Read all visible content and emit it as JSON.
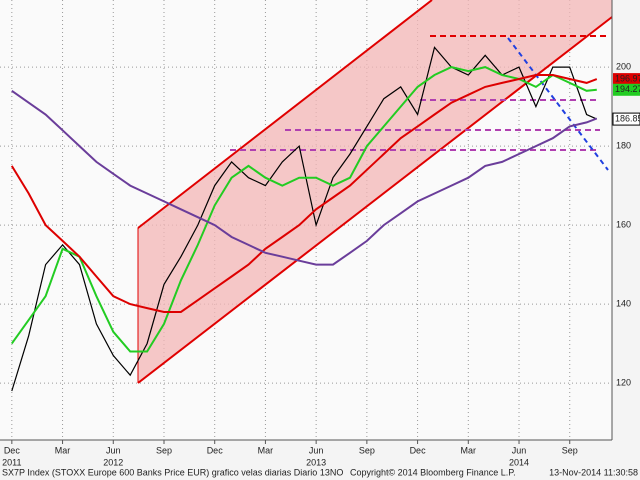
{
  "chart_data": {
    "type": "line",
    "x": [
      0,
      1,
      2,
      3,
      4,
      5,
      6,
      7,
      8,
      9,
      10,
      11,
      12,
      13,
      14,
      15,
      16,
      17,
      18,
      19,
      20,
      21,
      22,
      23,
      24,
      25,
      26,
      27,
      28,
      29,
      30,
      31,
      32,
      33,
      34,
      34.6
    ],
    "series": [
      {
        "color": "#000000",
        "values": [
          118,
          132,
          150,
          155,
          150,
          135,
          127,
          122,
          130,
          145,
          152,
          160,
          170,
          176,
          172,
          170,
          176,
          180,
          160,
          172,
          178,
          185,
          192,
          195,
          188,
          205,
          200,
          198,
          203,
          198,
          200,
          190,
          200,
          200,
          188,
          186.85
        ]
      },
      {
        "color": "#22cc22",
        "values": [
          130,
          136,
          142,
          154,
          152,
          142,
          133,
          128,
          128,
          135,
          146,
          155,
          165,
          172,
          175,
          172,
          170,
          172,
          172,
          170,
          172,
          180,
          185,
          190,
          195,
          198,
          200,
          199,
          200,
          198,
          197,
          195,
          198,
          196,
          194,
          194.27
        ]
      },
      {
        "color": "#dd0000",
        "values": [
          175,
          168,
          160,
          156,
          152,
          147,
          142,
          140,
          139,
          138,
          138,
          141,
          144,
          147,
          150,
          154,
          157,
          160,
          164,
          167,
          170,
          174,
          178,
          182,
          185,
          188,
          191,
          193,
          195,
          196,
          197,
          198,
          198,
          197,
          196,
          196.97
        ]
      },
      {
        "color": "#6a3d9a",
        "values": [
          194,
          191,
          188,
          184,
          180,
          176,
          173,
          170,
          168,
          166,
          164,
          162,
          160,
          157,
          155,
          153,
          152,
          151,
          150,
          150,
          153,
          156,
          160,
          163,
          166,
          168,
          170,
          172,
          175,
          176,
          178,
          180,
          182,
          185,
          186,
          187
        ]
      }
    ],
    "xlim": [
      -0.7,
      35.5
    ],
    "xticks": [
      {
        "value": 0,
        "label": "Dec"
      },
      {
        "value": 3,
        "label": "Mar"
      },
      {
        "value": 6,
        "label": "Jun"
      },
      {
        "value": 9,
        "label": "Sep"
      },
      {
        "value": 12,
        "label": "Dec"
      },
      {
        "value": 15,
        "label": "Mar"
      },
      {
        "value": 18,
        "label": "Jun"
      },
      {
        "value": 21,
        "label": "Sep"
      },
      {
        "value": 24,
        "label": "Dec"
      },
      {
        "value": 27,
        "label": "Mar"
      },
      {
        "value": 30,
        "label": "Jun"
      },
      {
        "value": 33,
        "label": "Sep"
      }
    ],
    "x_year_labels": [
      {
        "value": 0,
        "label": "2011"
      },
      {
        "value": 6,
        "label": "2012"
      },
      {
        "value": 18,
        "label": "2013"
      },
      {
        "value": 30,
        "label": "2014"
      }
    ],
    "ylim": [
      105.6,
      217
    ],
    "yticks": [
      120,
      140,
      160,
      180,
      200
    ],
    "grid": true,
    "footer": "SX7P Index (STOXX Europe 600 Banks Price EUR) grafico velas diarias  Diario 13NO",
    "copyright": "Copyright© 2014 Bloomberg Finance L.P.",
    "timestamp": "13-Nov-2014 11:30:58"
  }
}
